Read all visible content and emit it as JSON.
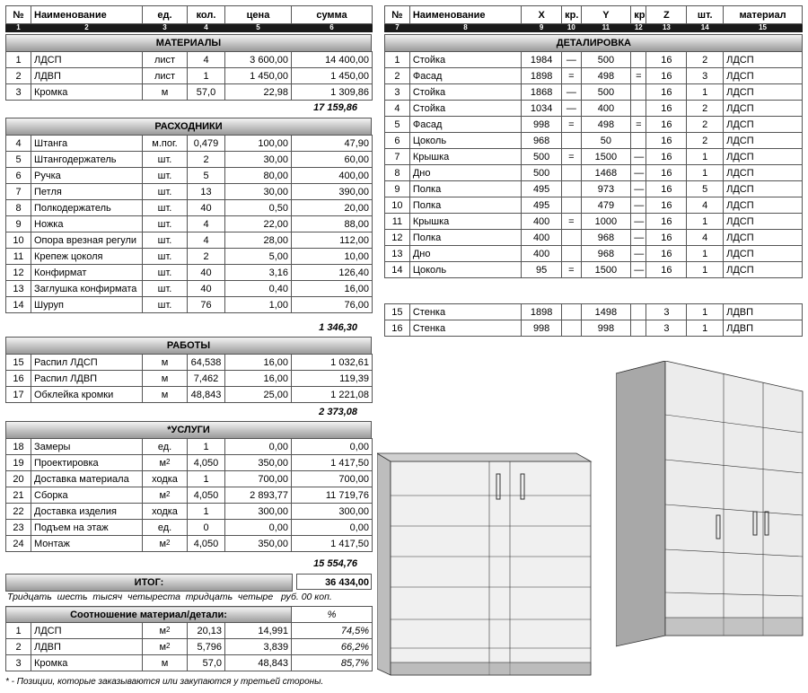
{
  "left_headers": [
    "№",
    "Наименование",
    "ед.",
    "кол.",
    "цена",
    "сумма"
  ],
  "left_index": [
    "1",
    "2",
    "3",
    "4",
    "5",
    "6"
  ],
  "sections": {
    "materials": {
      "title": "МАТЕРИАЛЫ",
      "rows": [
        [
          "1",
          "ЛДСП",
          "лист",
          "4",
          "3 600,00",
          "14 400,00"
        ],
        [
          "2",
          "ЛДВП",
          "лист",
          "1",
          "1 450,00",
          "1 450,00"
        ],
        [
          "3",
          "Кромка",
          "м",
          "57,0",
          "22,98",
          "1 309,86"
        ]
      ],
      "subtotal": "17 159,86"
    },
    "consumables": {
      "title": "РАСХОДНИКИ",
      "rows": [
        [
          "4",
          "Штанга",
          "м.пог.",
          "0,479",
          "100,00",
          "47,90"
        ],
        [
          "5",
          "Штангодержатель",
          "шт.",
          "2",
          "30,00",
          "60,00"
        ],
        [
          "6",
          "Ручка",
          "шт.",
          "5",
          "80,00",
          "400,00"
        ],
        [
          "7",
          "Петля",
          "шт.",
          "13",
          "30,00",
          "390,00"
        ],
        [
          "8",
          "Полкодержатель",
          "шт.",
          "40",
          "0,50",
          "20,00"
        ],
        [
          "9",
          "Ножка",
          "шт.",
          "4",
          "22,00",
          "88,00"
        ],
        [
          "10",
          "Опора врезная регули",
          "шт.",
          "4",
          "28,00",
          "112,00"
        ],
        [
          "11",
          "Крепеж цоколя",
          "шт.",
          "2",
          "5,00",
          "10,00"
        ],
        [
          "12",
          "Конфирмат",
          "шт.",
          "40",
          "3,16",
          "126,40"
        ],
        [
          "13",
          "Заглушка конфирмата",
          "шт.",
          "40",
          "0,40",
          "16,00"
        ],
        [
          "14",
          "Шуруп",
          "шт.",
          "76",
          "1,00",
          "76,00"
        ]
      ],
      "subtotal": "1 346,30"
    },
    "works": {
      "title": "РАБОТЫ",
      "rows": [
        [
          "15",
          "Распил ЛДСП",
          "м",
          "64,538",
          "16,00",
          "1 032,61"
        ],
        [
          "16",
          "Распил ЛДВП",
          "м",
          "7,462",
          "16,00",
          "119,39"
        ],
        [
          "17",
          "Обклейка кромки",
          "м",
          "48,843",
          "25,00",
          "1 221,08"
        ]
      ],
      "subtotal": "2 373,08"
    },
    "services": {
      "title": "*УСЛУГИ",
      "rows": [
        [
          "18",
          "Замеры",
          "ед.",
          "1",
          "0,00",
          "0,00"
        ],
        [
          "19",
          "Проектировка",
          "м2",
          "4,050",
          "350,00",
          "1 417,50"
        ],
        [
          "20",
          "Доставка материала",
          "ходка",
          "1",
          "700,00",
          "700,00"
        ],
        [
          "21",
          "Сборка",
          "м2",
          "4,050",
          "2 893,77",
          "11 719,76"
        ],
        [
          "22",
          "Доставка изделия",
          "ходка",
          "1",
          "300,00",
          "300,00"
        ],
        [
          "23",
          "Подъем на этаж",
          "ед.",
          "0",
          "0,00",
          "0,00"
        ],
        [
          "24",
          "Монтаж",
          "м2",
          "4,050",
          "350,00",
          "1 417,50"
        ]
      ],
      "subtotal": "15 554,76"
    }
  },
  "total": {
    "label": "ИТОГ:",
    "value": "36 434,00"
  },
  "amount_in_words": "Тридцать  шесть  тысяч  четыреста  тридцать  четыре   руб. 00 коп.",
  "ratio": {
    "title": "Соотношение материал/детали:",
    "percent_header": "%",
    "rows": [
      [
        "1",
        "ЛДСП",
        "м2",
        "20,13",
        "14,991",
        "74,5%"
      ],
      [
        "2",
        "ЛДВП",
        "м2",
        "5,796",
        "3,839",
        "66,2%"
      ],
      [
        "3",
        "Кромка",
        "м",
        "57,0",
        "48,843",
        "85,7%"
      ]
    ]
  },
  "footnote": "* - Позиции, которые заказываются или закупаются у третьей стороны.",
  "right_headers": [
    "№",
    "Наименование",
    "X",
    "кр.",
    "Y",
    "кр.",
    "Z",
    "шт.",
    "материал"
  ],
  "right_index": [
    "7",
    "8",
    "9",
    "10",
    "11",
    "12",
    "13",
    "14",
    "15"
  ],
  "details": {
    "title": "ДЕТАЛИРОВКА",
    "rows": [
      [
        "1",
        "Стойка",
        "1984",
        "—",
        "500",
        "",
        "16",
        "2",
        "ЛДСП"
      ],
      [
        "2",
        "Фасад",
        "1898",
        "=",
        "498",
        "=",
        "16",
        "3",
        "ЛДСП"
      ],
      [
        "3",
        "Стойка",
        "1868",
        "—",
        "500",
        "",
        "16",
        "1",
        "ЛДСП"
      ],
      [
        "4",
        "Стойка",
        "1034",
        "—",
        "400",
        "",
        "16",
        "2",
        "ЛДСП"
      ],
      [
        "5",
        "Фасад",
        "998",
        "=",
        "498",
        "=",
        "16",
        "2",
        "ЛДСП"
      ],
      [
        "6",
        "Цоколь",
        "968",
        "",
        "50",
        "",
        "16",
        "2",
        "ЛДСП"
      ],
      [
        "7",
        "Крышка",
        "500",
        "=",
        "1500",
        "—",
        "16",
        "1",
        "ЛДСП"
      ],
      [
        "8",
        "Дно",
        "500",
        "",
        "1468",
        "—",
        "16",
        "1",
        "ЛДСП"
      ],
      [
        "9",
        "Полка",
        "495",
        "",
        "973",
        "—",
        "16",
        "5",
        "ЛДСП"
      ],
      [
        "10",
        "Полка",
        "495",
        "",
        "479",
        "—",
        "16",
        "4",
        "ЛДСП"
      ],
      [
        "11",
        "Крышка",
        "400",
        "=",
        "1000",
        "—",
        "16",
        "1",
        "ЛДСП"
      ],
      [
        "12",
        "Полка",
        "400",
        "",
        "968",
        "—",
        "16",
        "4",
        "ЛДСП"
      ],
      [
        "13",
        "Дно",
        "400",
        "",
        "968",
        "—",
        "16",
        "1",
        "ЛДСП"
      ],
      [
        "14",
        "Цоколь",
        "95",
        "=",
        "1500",
        "—",
        "16",
        "1",
        "ЛДСП"
      ]
    ],
    "rows_dvp": [
      [
        "15",
        "Стенка",
        "1898",
        "",
        "1498",
        "",
        "3",
        "1",
        "ЛДВП"
      ],
      [
        "16",
        "Стенка",
        "998",
        "",
        "998",
        "",
        "3",
        "1",
        "ЛДВП"
      ]
    ]
  },
  "colors": {
    "index_bar": "#1a1a1a",
    "section_top": "#f4f4f4",
    "section_bottom": "#9a9a9a",
    "cabinet_fill": "#b8b8b8"
  },
  "images": [
    "low-cabinet-render",
    "tall-cabinet-render"
  ]
}
